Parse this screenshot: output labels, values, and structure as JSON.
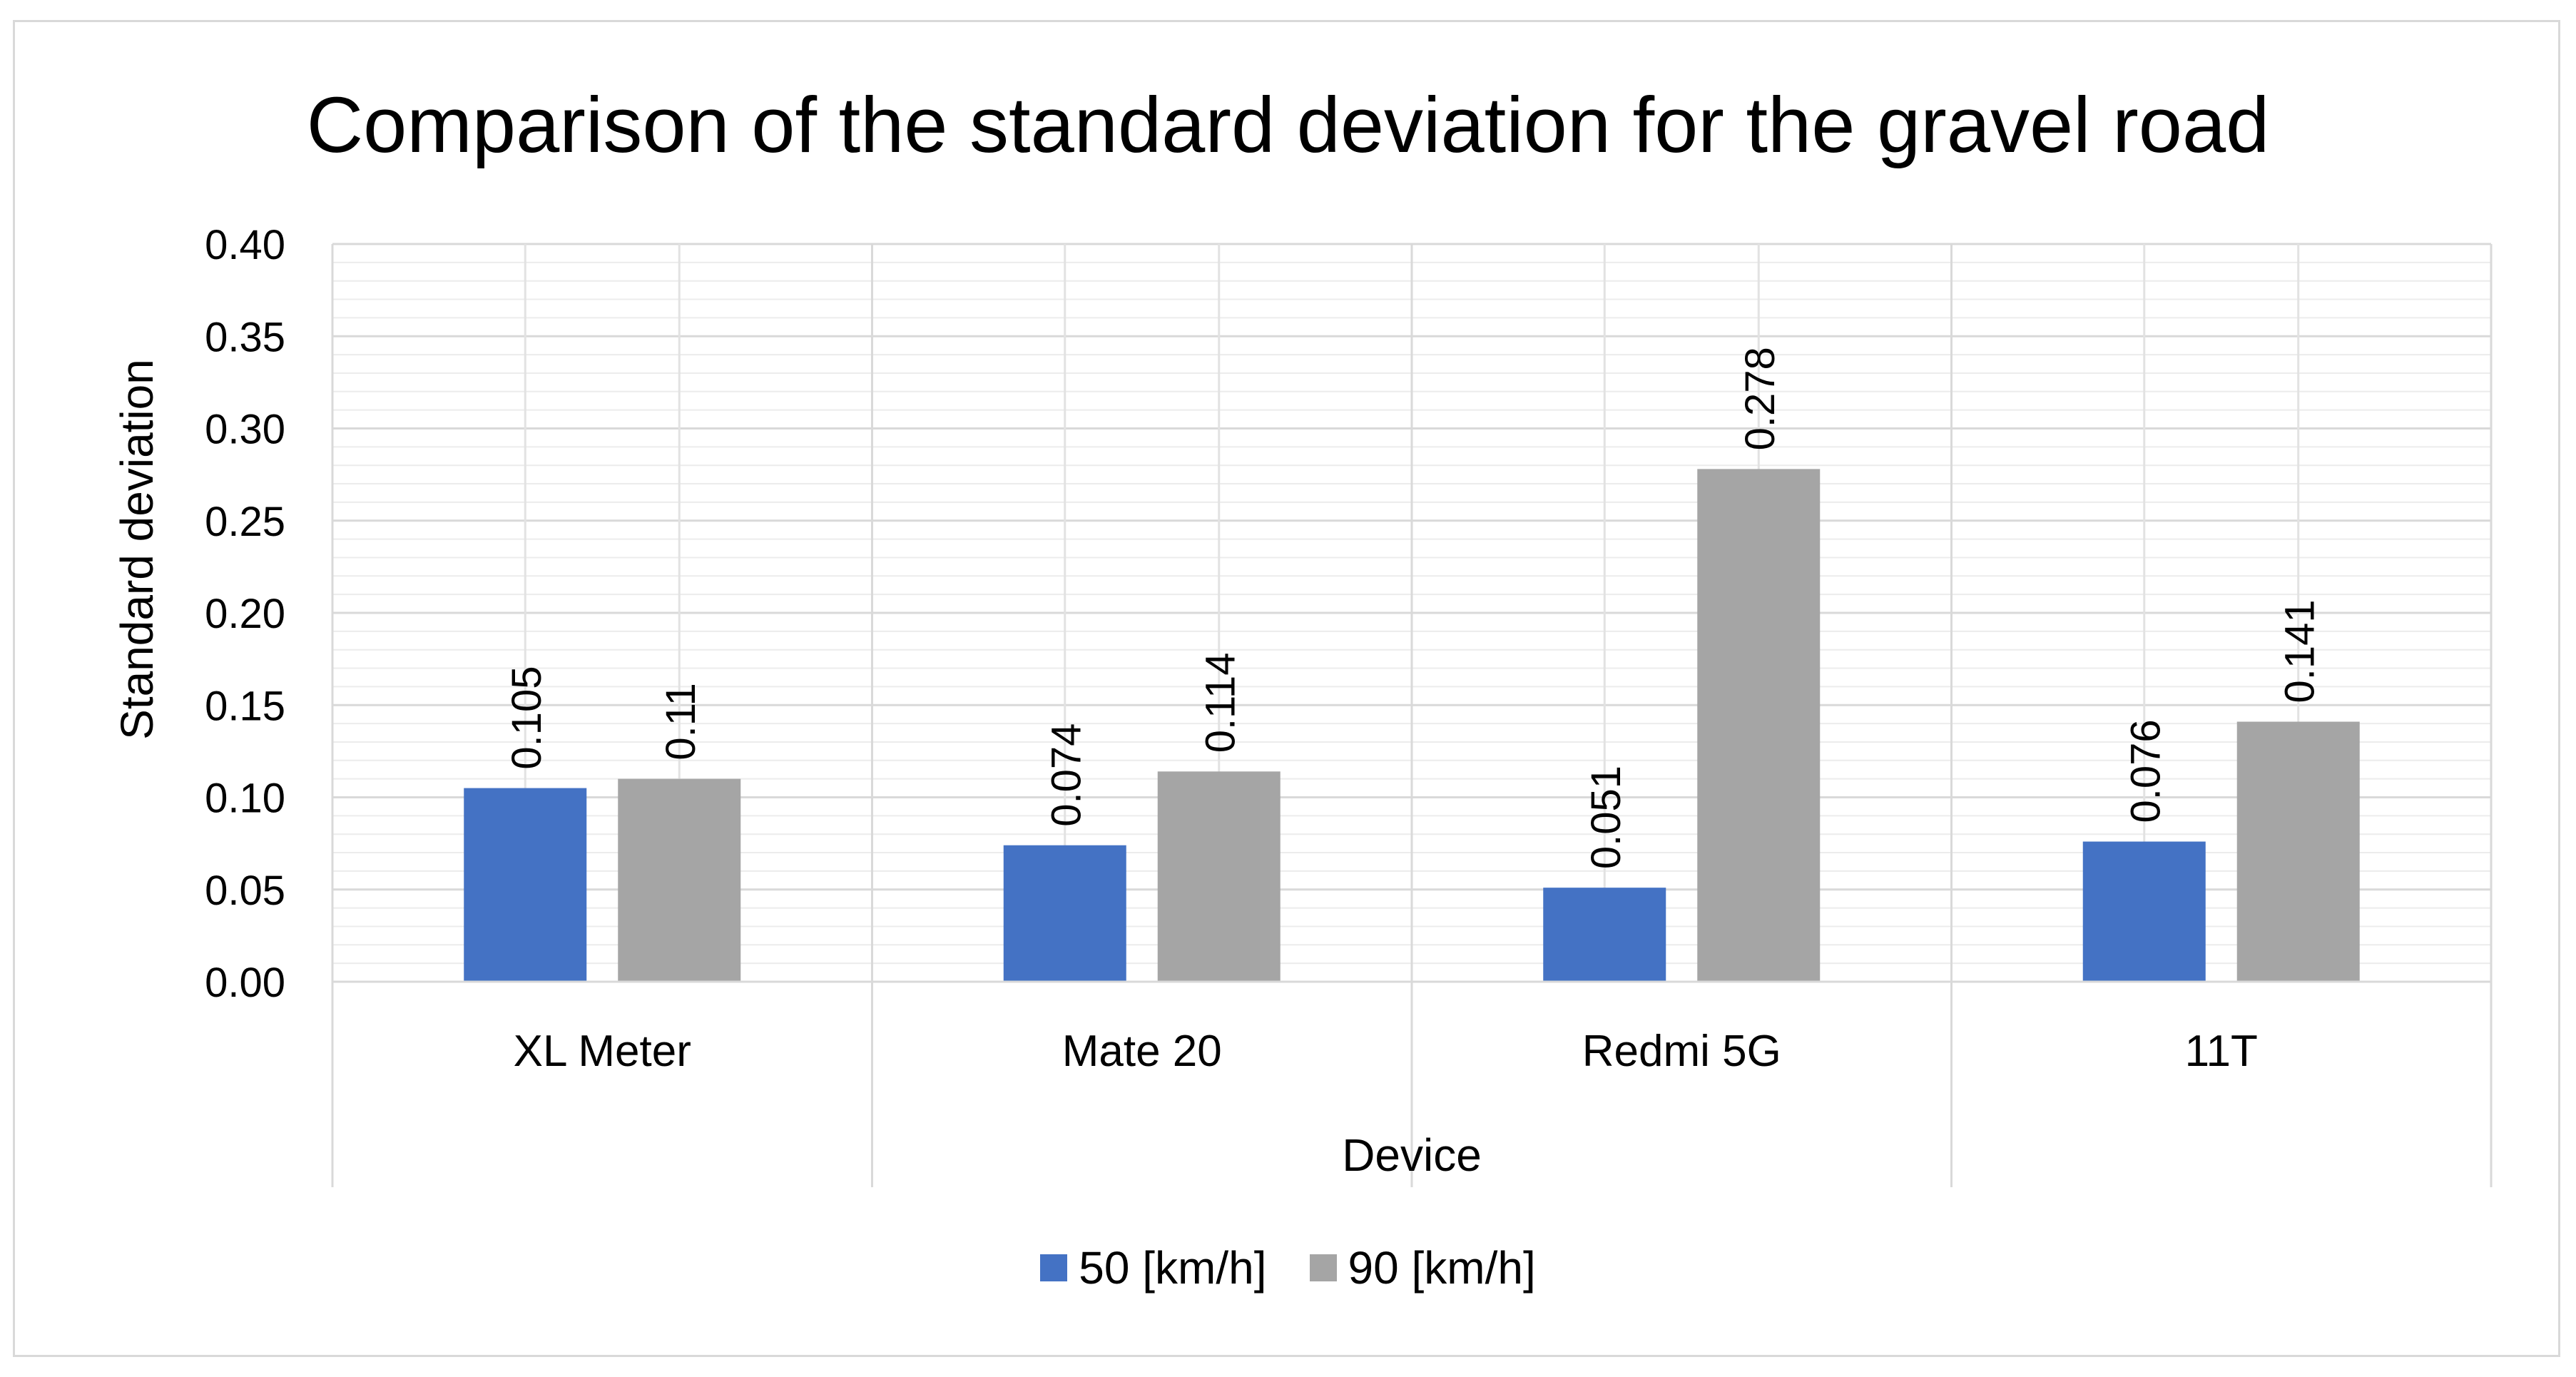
{
  "chart_data": {
    "type": "bar",
    "title": "Comparison of the standard deviation for the gravel road",
    "xlabel": "Device",
    "ylabel": "Standard deviation",
    "categories": [
      "XL Meter",
      "Mate 20",
      "Redmi 5G",
      "11T"
    ],
    "series": [
      {
        "name": "50 [km/h]",
        "color": "#4472c4",
        "values": [
          0.105,
          0.074,
          0.051,
          0.076
        ],
        "labels": [
          "0.105",
          "0.074",
          "0.051",
          "0.076"
        ]
      },
      {
        "name": "90 [km/h]",
        "color": "#a5a5a5",
        "values": [
          0.11,
          0.114,
          0.278,
          0.141
        ],
        "labels": [
          "0.11",
          "0.114",
          "0.278",
          "0.141"
        ]
      }
    ],
    "ylim": [
      0,
      0.4
    ],
    "yticks": [
      0,
      0.05,
      0.1,
      0.15,
      0.2,
      0.25,
      0.3,
      0.35,
      0.4
    ],
    "ytick_labels": [
      "0.00",
      "0.05",
      "0.10",
      "0.15",
      "0.20",
      "0.25",
      "0.30",
      "0.35",
      "0.40"
    ],
    "grid": true,
    "legend_position": "bottom"
  }
}
